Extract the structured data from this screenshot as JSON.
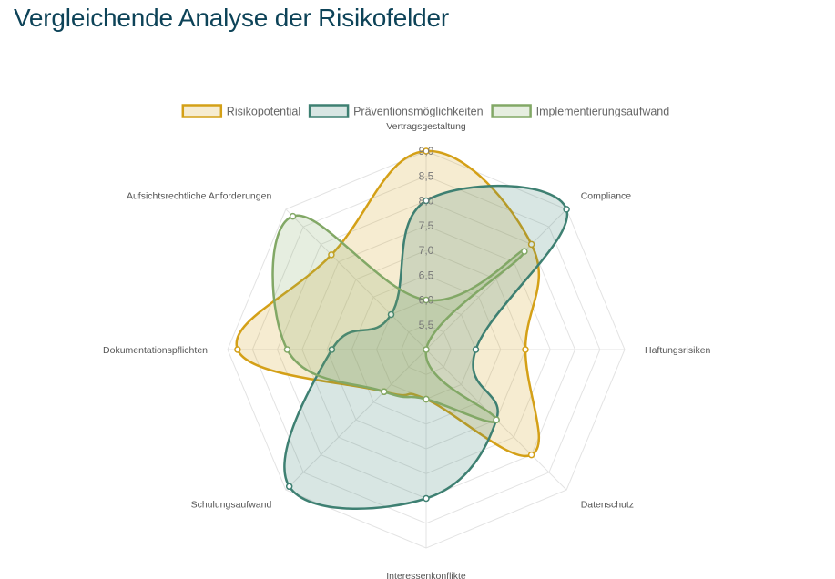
{
  "page": {
    "title": "Vergleichende Analyse der Risikofelder"
  },
  "chart_data": {
    "type": "radar",
    "categories": [
      "Vertragsgestaltung",
      "Compliance",
      "Haftungsrisiken",
      "Datenschutz",
      "Interessenkonflikte",
      "Schulungsaufwand",
      "Dokumentationspflichten",
      "Aufsichtsrechtliche Anforderungen"
    ],
    "rmin": 5.0,
    "rmax": 9.0,
    "ticks": [
      5.5,
      6.0,
      6.5,
      7.0,
      7.5,
      8.0,
      8.5,
      9.0
    ],
    "tick_labels": [
      "5,5",
      "6,0",
      "6,5",
      "7,0",
      "7,5",
      "8,0",
      "8,5",
      "9,0"
    ],
    "grid": true,
    "legend_position": "top",
    "series": [
      {
        "name": "Risikopotential",
        "color": "#d4a017",
        "fill": "rgba(212,160,23,0.2)",
        "values": [
          9.0,
          8.0,
          7.0,
          8.0,
          6.0,
          6.2,
          8.8,
          7.7
        ]
      },
      {
        "name": "Präventionsmöglichkeiten",
        "color": "#3e8072",
        "fill": "rgba(62,128,114,0.2)",
        "values": [
          8.0,
          9.0,
          6.0,
          7.0,
          8.0,
          8.9,
          6.9,
          6.0
        ]
      },
      {
        "name": "Implementierungsaufwand",
        "color": "#82a866",
        "fill": "rgba(130,168,102,0.2)",
        "values": [
          6.0,
          7.8,
          5.0,
          7.0,
          6.0,
          6.2,
          7.8,
          8.8
        ]
      }
    ]
  }
}
